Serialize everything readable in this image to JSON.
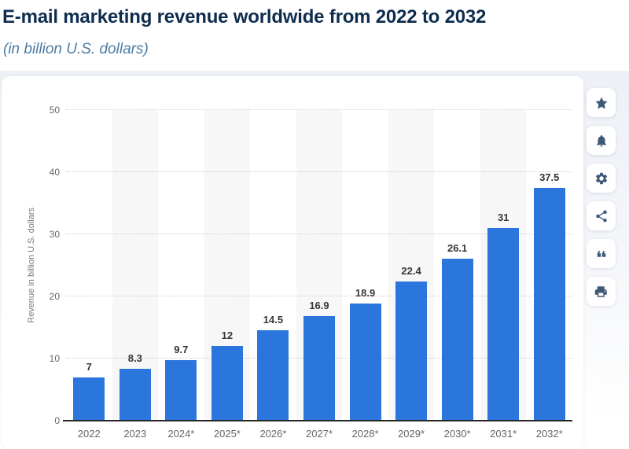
{
  "header": {
    "title": "E-mail marketing revenue worldwide from 2022 to 2032",
    "subtitle": "(in billion U.S. dollars)"
  },
  "toolbar": {
    "items": [
      {
        "label": "favorite",
        "icon": "star-icon"
      },
      {
        "label": "notifications",
        "icon": "bell-icon"
      },
      {
        "label": "settings",
        "icon": "gear-icon"
      },
      {
        "label": "share",
        "icon": "share-icon"
      },
      {
        "label": "cite",
        "icon": "quote-icon"
      },
      {
        "label": "print",
        "icon": "print-icon"
      }
    ]
  },
  "chart_data": {
    "type": "bar",
    "title": "E-mail marketing revenue worldwide from 2022 to 2032",
    "subtitle": "(in billion U.S. dollars)",
    "categories": [
      "2022",
      "2023",
      "2024*",
      "2025*",
      "2026*",
      "2027*",
      "2028*",
      "2029*",
      "2030*",
      "2031*",
      "2032*"
    ],
    "values": [
      7,
      8.3,
      9.7,
      12,
      14.5,
      16.9,
      18.9,
      22.4,
      26.1,
      31,
      37.5
    ],
    "xlabel": "",
    "ylabel": "Revenue in billion U.S. dollars",
    "ylim": [
      0,
      50
    ],
    "yticks": [
      0,
      10,
      20,
      30,
      40,
      50
    ],
    "grid": "horizontal-dotted",
    "legend_position": "none",
    "bar_color": "#2a76dd",
    "plot_band_color": "#f7f7f7",
    "value_label_color": "#363636",
    "axis_text_color": "#666666",
    "title_color": "#0e2d4e",
    "subtitle_color": "#4d7aa3"
  }
}
